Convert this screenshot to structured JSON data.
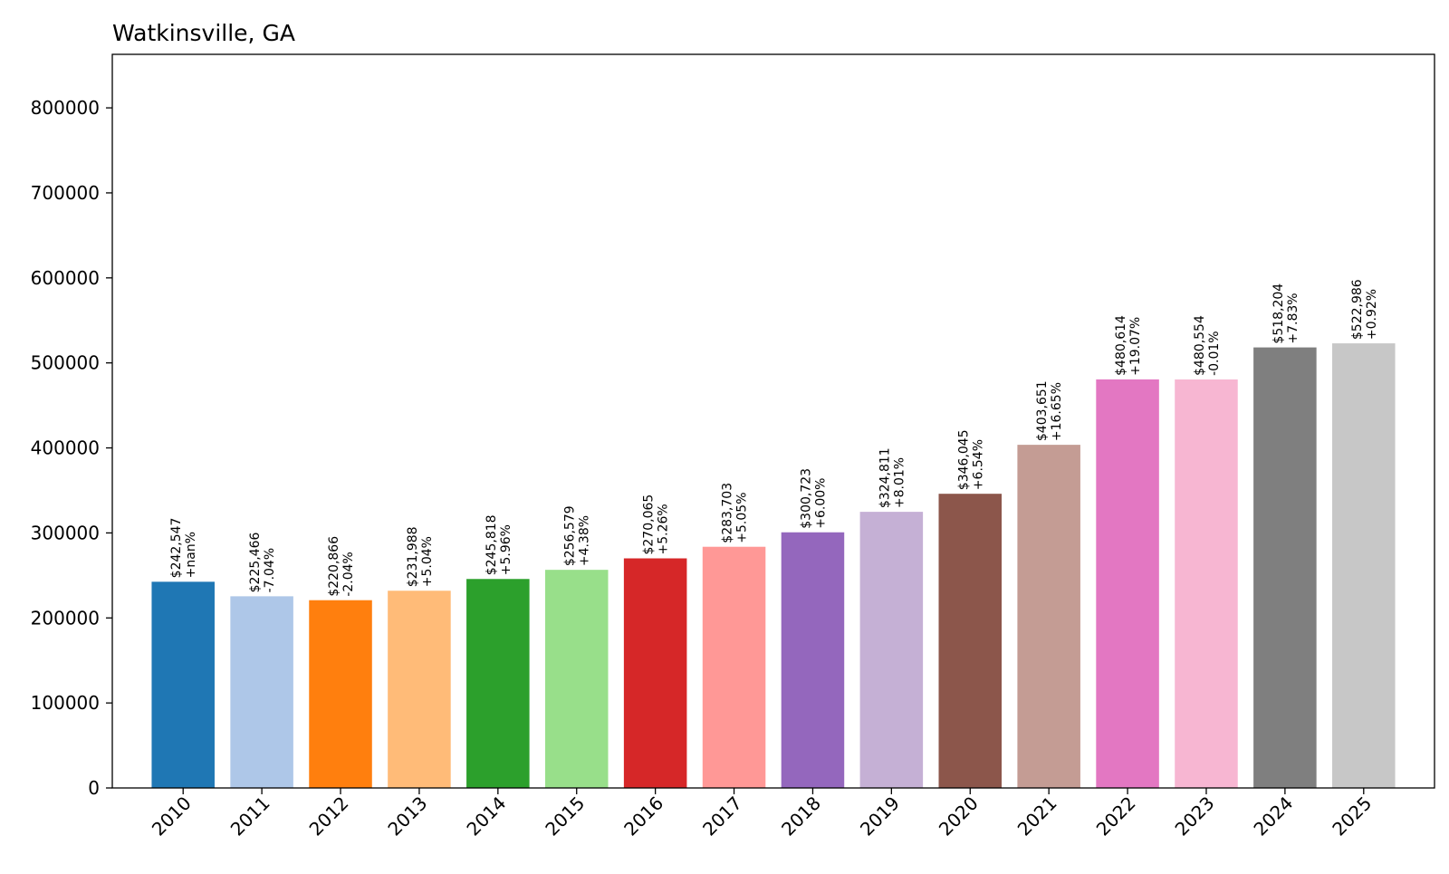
{
  "chart_data": {
    "type": "bar",
    "title": "Watkinsville, GA",
    "xlabel": "",
    "ylabel": "",
    "categories": [
      "2010",
      "2011",
      "2012",
      "2013",
      "2014",
      "2015",
      "2016",
      "2017",
      "2018",
      "2019",
      "2020",
      "2021",
      "2022",
      "2023",
      "2024",
      "2025"
    ],
    "values": [
      242547,
      225466,
      220866,
      231988,
      245818,
      256579,
      270065,
      283703,
      300723,
      324811,
      346045,
      403651,
      480614,
      480554,
      518204,
      522986
    ],
    "value_labels": [
      "$242,547",
      "$225,466",
      "$220,866",
      "$231,988",
      "$245,818",
      "$256,579",
      "$270,065",
      "$283,703",
      "$300,723",
      "$324,811",
      "$346,045",
      "$403,651",
      "$480,614",
      "$480,554",
      "$518,204",
      "$522,986"
    ],
    "change_labels": [
      "+nan%",
      "-7.04%",
      "-2.04%",
      "+5.04%",
      "+5.96%",
      "+4.38%",
      "+5.26%",
      "+5.05%",
      "+6.00%",
      "+8.01%",
      "+6.54%",
      "+16.65%",
      "+19.07%",
      "-0.01%",
      "+7.83%",
      "+0.92%"
    ],
    "colors": [
      "#1f77b4",
      "#aec7e8",
      "#ff7f0e",
      "#ffbb78",
      "#2ca02c",
      "#98df8a",
      "#d62728",
      "#ff9896",
      "#9467bd",
      "#c5b0d5",
      "#8c564b",
      "#c49c94",
      "#e377c2",
      "#f7b6d2",
      "#7f7f7f",
      "#c7c7c7"
    ],
    "yticks": [
      0,
      100000,
      200000,
      300000,
      400000,
      500000,
      600000,
      700000,
      800000
    ],
    "ylim": [
      0,
      862950
    ],
    "grid": false,
    "legend": false
  }
}
